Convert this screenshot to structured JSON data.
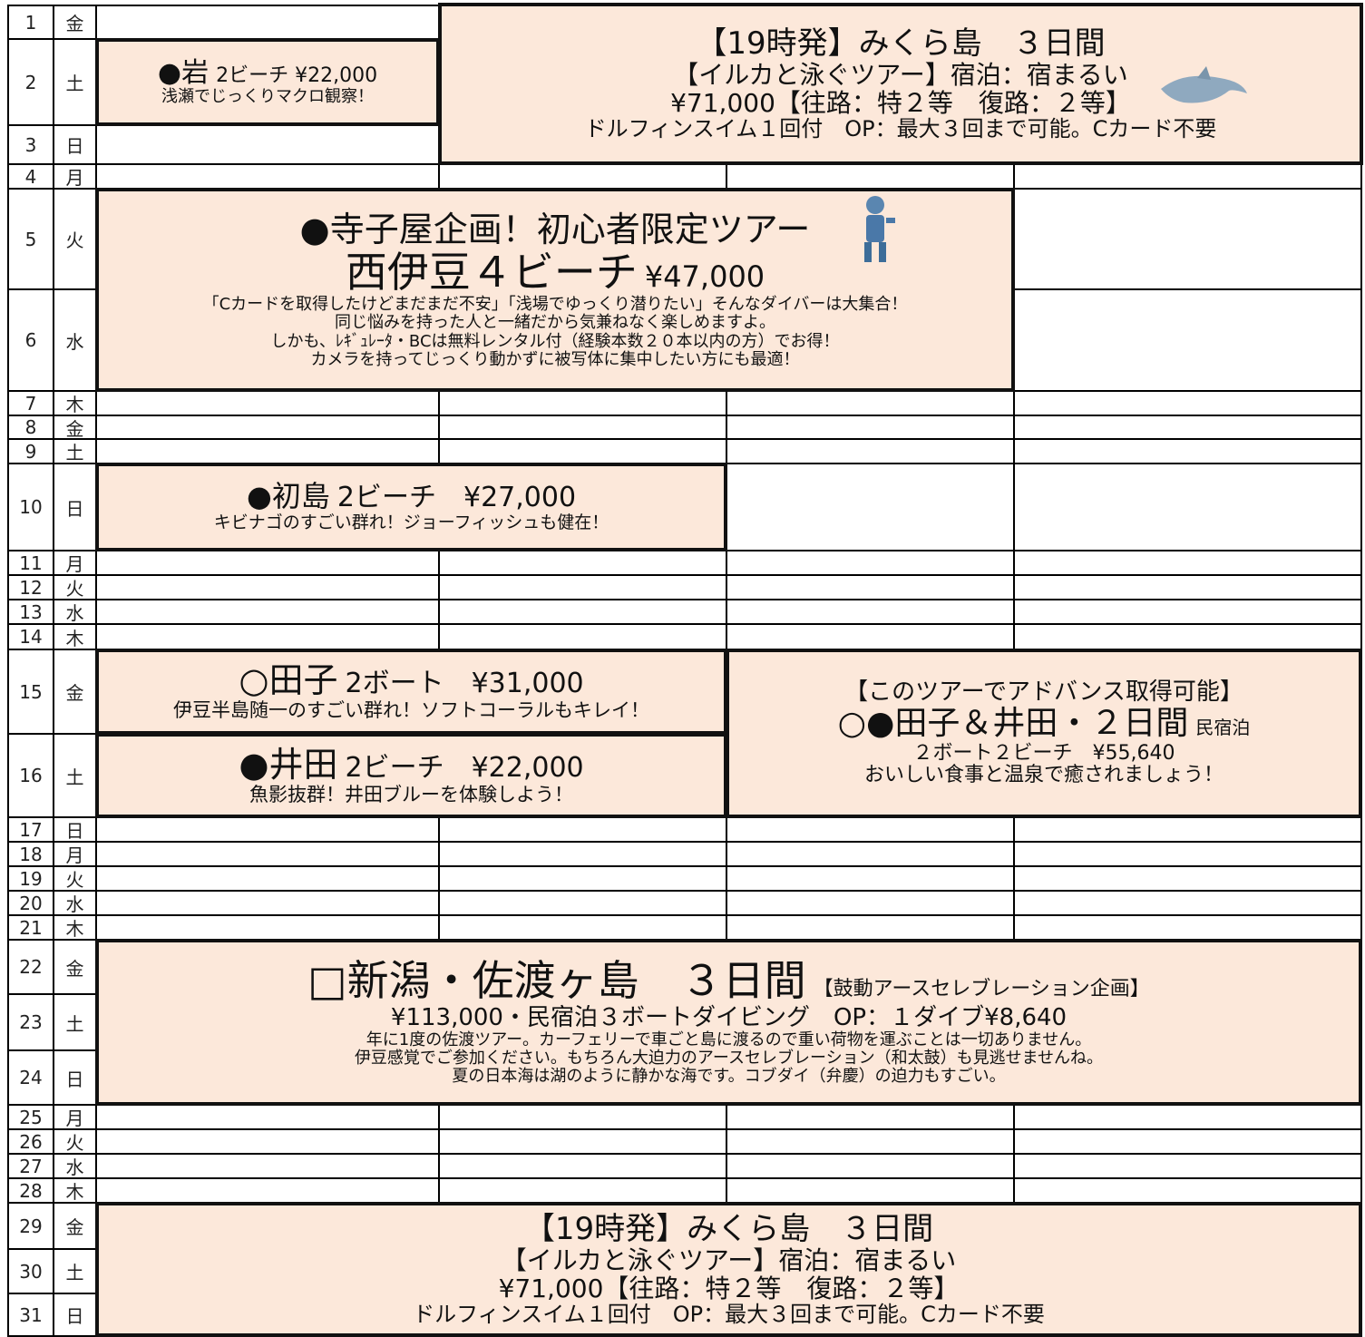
{
  "days": [
    [
      "1",
      "金"
    ],
    [
      "2",
      "土"
    ],
    [
      "3",
      "日"
    ],
    [
      "4",
      "月"
    ],
    [
      "5",
      "火"
    ],
    [
      "6",
      "水"
    ],
    [
      "7",
      "木"
    ],
    [
      "8",
      "金"
    ],
    [
      "9",
      "土"
    ],
    [
      "10",
      "日"
    ],
    [
      "11",
      "月"
    ],
    [
      "12",
      "火"
    ],
    [
      "13",
      "水"
    ],
    [
      "14",
      "木"
    ],
    [
      "15",
      "金"
    ],
    [
      "16",
      "土"
    ],
    [
      "17",
      "日"
    ],
    [
      "18",
      "月"
    ],
    [
      "19",
      "火"
    ],
    [
      "20",
      "水"
    ],
    [
      "21",
      "木"
    ],
    [
      "22",
      "金"
    ],
    [
      "23",
      "土"
    ],
    [
      "24",
      "日"
    ],
    [
      "25",
      "月"
    ],
    [
      "26",
      "火"
    ],
    [
      "27",
      "水"
    ],
    [
      "28",
      "木"
    ],
    [
      "29",
      "金"
    ],
    [
      "30",
      "土"
    ],
    [
      "31",
      "日"
    ]
  ],
  "events": [
    {
      "lines": [
        [
          "【19時発】みくら島　３日間"
        ],
        [
          "【イルカと泳ぐツアー】宿泊：宿まるい"
        ],
        [
          "¥71,000【往路：特２等　復路：２等】"
        ],
        [
          "ドルフィンスイム１回付　OP：最大３回まで可能。Cカード不要"
        ]
      ]
    },
    {
      "lines": [
        [
          "●岩",
          "2ビーチ ¥22,000"
        ],
        [
          "浅瀬でじっくりマクロ観察！"
        ]
      ]
    },
    {
      "lines": [
        [
          "●寺子屋企画！初心者限定ツアー"
        ],
        [
          "西伊豆４ビーチ",
          "¥47,000"
        ],
        [
          "「Cカードを取得したけどまだまだ不安」「浅場でゆっくり潜りたい」そんなダイバーは大集合！"
        ],
        [
          "同じ悩みを持った人と一緒だから気兼ねなく楽しめますよ。"
        ],
        [
          "しかも、ﾚｷﾞｭﾚｰﾀ・BCは無料レンタル付（経験本数２０本以内の方）でお得！"
        ],
        [
          "カメラを持ってじっくり動かずに被写体に集中したい方にも最適！"
        ]
      ]
    },
    {
      "lines": [
        [
          "●初島",
          "2ビーチ　¥27,000"
        ],
        [
          "キビナゴのすごい群れ！ジョーフィッシュも健在！"
        ]
      ]
    },
    {
      "lines": [
        [
          "○田子",
          "2ボート　¥31,000"
        ],
        [
          "伊豆半島随一のすごい群れ！ソフトコーラルもキレイ！"
        ]
      ]
    },
    {
      "lines": [
        [
          "●井田",
          "2ビーチ　¥22,000"
        ],
        [
          "魚影抜群！井田ブルーを体験しよう！"
        ]
      ]
    },
    {
      "lines": [
        [
          "【このツアーでアドバンス取得可能】"
        ],
        [
          "○●田子＆井田・２日間",
          "民宿泊"
        ],
        [
          "２ボート２ビーチ　¥55,640"
        ],
        [
          "おいしい食事と温泉で癒されましょう！"
        ]
      ]
    },
    {
      "lines": [
        [
          "□新潟・佐渡ヶ島　３日間",
          "【鼓動アースセレブレーション企画】"
        ],
        [
          "¥113,000・民宿泊３ボートダイビング　OP：１ダイブ¥8,640"
        ],
        [
          "年に1度の佐渡ツアー。カーフェリーで車ごと島に渡るので重い荷物を運ぶことは一切ありません。"
        ],
        [
          "伊豆感覚でご参加ください。もちろん大迫力のアースセレブレーション（和太鼓）も見逃せませんね。"
        ],
        [
          "夏の日本海は湖のように静かな海です。コブダイ（弁慶）の迫力もすごい。"
        ]
      ]
    },
    {
      "lines": [
        [
          "【19時発】みくら島　３日間"
        ],
        [
          "【イルカと泳ぐツアー】宿泊：宿まるい"
        ],
        [
          "¥71,000【往路：特２等　復路：２等】"
        ],
        [
          "ドルフィンスイム１回付　OP：最大３回まで可能。Cカード不要"
        ]
      ]
    }
  ]
}
